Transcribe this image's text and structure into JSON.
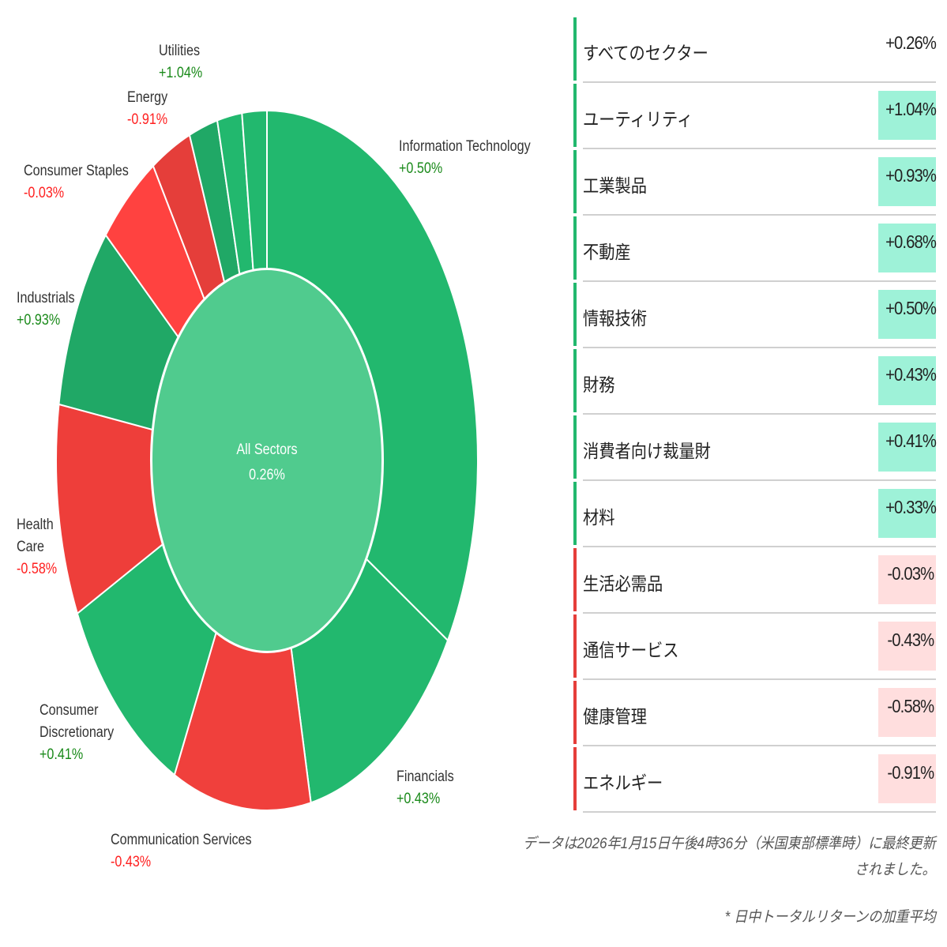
{
  "chart_data": {
    "type": "pie",
    "subtype": "donut",
    "center_label": "All Sectors",
    "center_value": "0.26%",
    "start": "top",
    "direction": "clockwise",
    "segments": [
      {
        "name": "Information Technology",
        "change": "+0.50%",
        "weight": 33.7,
        "color": "#22b86e"
      },
      {
        "name": "Financials",
        "change": "+0.43%",
        "weight": 13.1,
        "color": "#22b86e"
      },
      {
        "name": "Communication Services",
        "change": "-0.43%",
        "weight": 10.6,
        "color": "#f0403c"
      },
      {
        "name": "Consumer Discretionary",
        "change": "+0.41%",
        "weight": 10.6,
        "color": "#22b86e"
      },
      {
        "name": "Health Care",
        "change": "-0.58%",
        "weight": 9.8,
        "color": "#ee3e3a"
      },
      {
        "name": "Industrials",
        "change": "+0.93%",
        "weight": 8.6,
        "color": "#20a866"
      },
      {
        "name": "Consumer Staples",
        "change": "-0.03%",
        "weight": 4.8,
        "color": "#ff4240"
      },
      {
        "name": "Energy",
        "change": "-0.91%",
        "weight": 3.1,
        "color": "#e53e3a"
      },
      {
        "name": "Utilities",
        "change": "+1.04%",
        "weight": 2.2,
        "color": "#20a866"
      },
      {
        "name": "Real Estate",
        "change": "+0.68%",
        "weight": 1.9,
        "color": "#22b86e"
      },
      {
        "name": "Materials",
        "change": "+0.33%",
        "weight": 1.9,
        "color": "#22b86e"
      }
    ],
    "labels": [
      {
        "lines": [
          "Information Technology"
        ],
        "value": "+0.50%",
        "sign": "pos"
      },
      {
        "lines": [
          "Financials"
        ],
        "value": "+0.43%",
        "sign": "pos"
      },
      {
        "lines": [
          "Communication Services"
        ],
        "value": "-0.43%",
        "sign": "neg"
      },
      {
        "lines": [
          "Consumer",
          "Discretionary"
        ],
        "value": "+0.41%",
        "sign": "pos"
      },
      {
        "lines": [
          "Health",
          "Care"
        ],
        "value": "-0.58%",
        "sign": "neg"
      },
      {
        "lines": [
          "Industrials"
        ],
        "value": "+0.93%",
        "sign": "pos"
      },
      {
        "lines": [
          "Consumer Staples"
        ],
        "value": "-0.03%",
        "sign": "neg"
      },
      {
        "lines": [
          "Energy"
        ],
        "value": "-0.91%",
        "sign": "neg"
      },
      {
        "lines": [
          "Utilities"
        ],
        "value": "+1.04%",
        "sign": "pos"
      }
    ]
  },
  "colors": {
    "positive": "#22b86e",
    "negative": "#e53e3a",
    "center": "#50cb8e",
    "pos_bg": "#9ef2d8",
    "neg_bg": "#ffdede"
  },
  "table": [
    {
      "name": "すべてのセクター",
      "value": "+0.26%",
      "sign": "pos",
      "highlight": false
    },
    {
      "name": "ユーティリティ",
      "value": "+1.04%",
      "sign": "pos",
      "highlight": true
    },
    {
      "name": "工業製品",
      "value": "+0.93%",
      "sign": "pos",
      "highlight": true
    },
    {
      "name": "不動産",
      "value": "+0.68%",
      "sign": "pos",
      "highlight": true
    },
    {
      "name": "情報技術",
      "value": "+0.50%",
      "sign": "pos",
      "highlight": true
    },
    {
      "name": "財務",
      "value": "+0.43%",
      "sign": "pos",
      "highlight": true
    },
    {
      "name": "消費者向け裁量財",
      "value": "+0.41%",
      "sign": "pos",
      "highlight": true
    },
    {
      "name": "材料",
      "value": "+0.33%",
      "sign": "pos",
      "highlight": true
    },
    {
      "name": "生活必需品",
      "value": "-0.03%",
      "sign": "neg",
      "highlight": true
    },
    {
      "name": "通信サービス",
      "value": "-0.43%",
      "sign": "neg",
      "highlight": true
    },
    {
      "name": "健康管理",
      "value": "-0.58%",
      "sign": "neg",
      "highlight": true
    },
    {
      "name": "エネルギー",
      "value": "-0.91%",
      "sign": "neg",
      "highlight": true
    }
  ],
  "footnote": {
    "updated_line1": "データは2026年1月15日午後4時36分（米国東部標準時）に最終更新",
    "updated_line2": "されました。",
    "weighted": "* 日中トータルリターンの加重平均"
  }
}
